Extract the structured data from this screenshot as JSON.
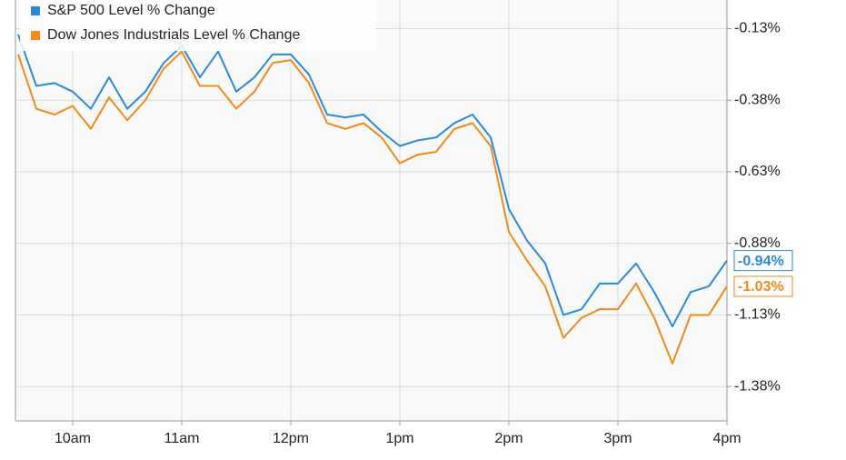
{
  "chart_data": {
    "type": "line",
    "x": [
      570,
      580,
      590,
      600,
      610,
      620,
      630,
      640,
      650,
      660,
      670,
      680,
      690,
      700,
      710,
      720,
      730,
      740,
      750,
      760,
      770,
      780,
      790,
      800,
      810,
      820,
      830,
      840,
      850,
      860,
      870,
      880,
      890,
      900,
      910,
      920,
      930,
      940,
      950,
      960
    ],
    "xlim": [
      568.5,
      960
    ],
    "xticks": [
      {
        "value": 600,
        "label": "10am"
      },
      {
        "value": 660,
        "label": "11am"
      },
      {
        "value": 720,
        "label": "12pm"
      },
      {
        "value": 780,
        "label": "1pm"
      },
      {
        "value": 840,
        "label": "2pm"
      },
      {
        "value": 900,
        "label": "3pm"
      },
      {
        "value": 960,
        "label": "4pm"
      }
    ],
    "ylim": [
      -1.5,
      -0.03
    ],
    "yticks": [
      {
        "value": -0.13,
        "label": "-0.13%"
      },
      {
        "value": -0.38,
        "label": "-0.38%"
      },
      {
        "value": -0.63,
        "label": "-0.63%"
      },
      {
        "value": -0.88,
        "label": "-0.88%"
      },
      {
        "value": -1.13,
        "label": "-1.13%"
      },
      {
        "value": -1.38,
        "label": "-1.38%"
      }
    ],
    "grid": true,
    "legend": "top-left",
    "series": [
      {
        "name": "S&P 500 Level % Change",
        "color": "#2a8ad8",
        "values": [
          -0.15,
          -0.33,
          -0.32,
          -0.35,
          -0.41,
          -0.3,
          -0.41,
          -0.35,
          -0.25,
          -0.19,
          -0.3,
          -0.21,
          -0.35,
          -0.3,
          -0.22,
          -0.22,
          -0.29,
          -0.43,
          -0.44,
          -0.43,
          -0.49,
          -0.54,
          -0.52,
          -0.51,
          -0.46,
          -0.43,
          -0.51,
          -0.76,
          -0.87,
          -0.95,
          -1.13,
          -1.11,
          -1.02,
          -1.02,
          -0.95,
          -1.05,
          -1.17,
          -1.05,
          -1.03,
          -0.94
        ],
        "value_labels": [
          null,
          null,
          null,
          null,
          null,
          null,
          null,
          null,
          null,
          null,
          null,
          null,
          null,
          null,
          null,
          null,
          null,
          null,
          null,
          null,
          null,
          null,
          null,
          null,
          null,
          null,
          null,
          null,
          null,
          null,
          null,
          null,
          null,
          null,
          null,
          null,
          null,
          null,
          null,
          "-0.94%"
        ]
      },
      {
        "name": "Dow Jones Industrials Level % Change",
        "color": "#f28a1c",
        "values": [
          -0.22,
          -0.41,
          -0.43,
          -0.4,
          -0.48,
          -0.37,
          -0.45,
          -0.38,
          -0.27,
          -0.21,
          -0.33,
          -0.33,
          -0.41,
          -0.35,
          -0.25,
          -0.24,
          -0.32,
          -0.46,
          -0.48,
          -0.46,
          -0.51,
          -0.6,
          -0.57,
          -0.56,
          -0.48,
          -0.46,
          -0.54,
          -0.84,
          -0.94,
          -1.03,
          -1.21,
          -1.14,
          -1.11,
          -1.11,
          -1.02,
          -1.14,
          -1.3,
          -1.13,
          -1.13,
          -1.03
        ],
        "value_labels": [
          null,
          null,
          null,
          null,
          null,
          null,
          null,
          null,
          null,
          null,
          null,
          null,
          null,
          null,
          null,
          null,
          null,
          null,
          null,
          null,
          null,
          null,
          null,
          null,
          null,
          null,
          null,
          null,
          null,
          null,
          null,
          null,
          null,
          null,
          null,
          null,
          null,
          null,
          null,
          "-1.03%"
        ]
      }
    ]
  }
}
